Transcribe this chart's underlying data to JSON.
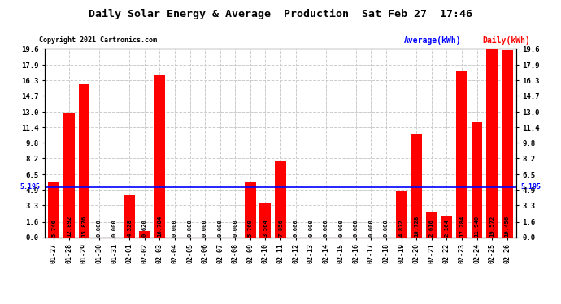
{
  "title": "Daily Solar Energy & Average  Production  Sat Feb 27  17:46",
  "copyright": "Copyright 2021 Cartronics.com",
  "legend_avg": "Average(kWh)",
  "legend_daily": "Daily(kWh)",
  "categories": [
    "01-27",
    "01-28",
    "01-29",
    "01-30",
    "01-31",
    "02-01",
    "02-02",
    "02-03",
    "02-04",
    "02-05",
    "02-06",
    "02-07",
    "02-08",
    "02-09",
    "02-10",
    "02-11",
    "02-12",
    "02-13",
    "02-14",
    "02-15",
    "02-16",
    "02-17",
    "02-18",
    "02-19",
    "02-20",
    "02-21",
    "02-22",
    "02-23",
    "02-24",
    "02-25",
    "02-26"
  ],
  "values": [
    5.746,
    12.892,
    15.876,
    0.0,
    0.0,
    4.328,
    0.62,
    16.784,
    0.0,
    0.0,
    0.0,
    0.0,
    0.0,
    5.76,
    3.564,
    7.856,
    0.0,
    0.0,
    0.0,
    0.0,
    0.0,
    0.0,
    0.0,
    4.872,
    10.728,
    2.616,
    2.164,
    17.284,
    11.94,
    19.572,
    19.456
  ],
  "average": 5.195,
  "ylim": [
    0.0,
    19.6
  ],
  "yticks": [
    0.0,
    1.6,
    3.3,
    4.9,
    6.5,
    8.2,
    9.8,
    11.4,
    13.0,
    14.7,
    16.3,
    17.9,
    19.6
  ],
  "bar_color": "#ff0000",
  "avg_line_color": "#0000ff",
  "avg_label_color": "#0000ff",
  "daily_label_color": "#ff0000",
  "title_color": "#000000",
  "background_color": "#ffffff",
  "grid_color": "#cccccc",
  "value_label_color": "#000000",
  "avg_value_label": "5.195",
  "figsize": [
    6.9,
    3.75
  ],
  "dpi": 100
}
